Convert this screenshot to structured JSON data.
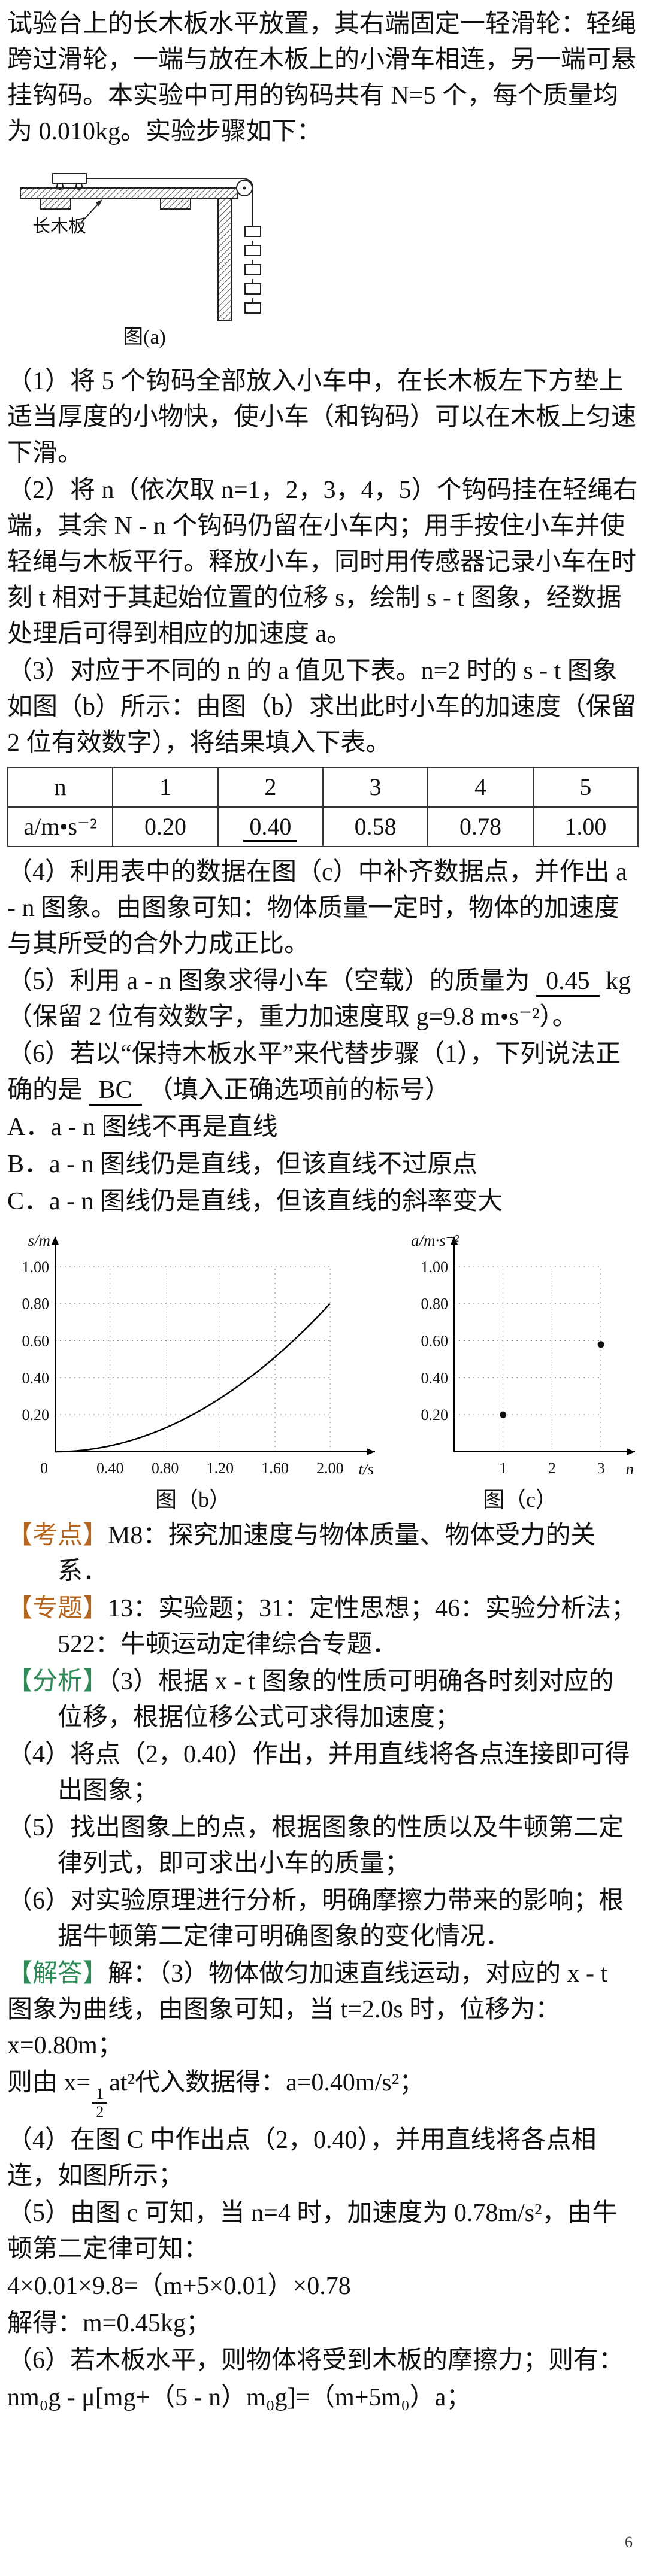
{
  "page_number": "6",
  "intro": "试验台上的长木板水平放置，其右端固定一轻滑轮：轻绳跨过滑轮，一端与放在木板上的小滑车相连，另一端可悬挂钩码。本实验中可用的钩码共有 N=5 个，每个质量均为 0.010kg。实验步骤如下：",
  "figure_a": {
    "board_label": "长木板",
    "caption": "图(a)"
  },
  "steps": [
    "（1）将 5 个钩码全部放入小车中，在长木板左下方垫上适当厚度的小物快，使小车（和钩码）可以在木板上匀速下滑。",
    "（2）将 n（依次取 n=1，2，3，4，5）个钩码挂在轻绳右端，其余 N - n 个钩码仍留在小车内；用手按住小车并使轻绳与木板平行。释放小车，同时用传感器记录小车在时刻 t 相对于其起始位置的位移 s，绘制 s - t 图象，经数据处理后可得到相应的加速度 a。",
    "（3）对应于不同的 n 的 a 值见下表。n=2 时的 s - t 图象如图（b）所示：由图（b）求出此时小车的加速度（保留 2 位有效数字），将结果填入下表。",
    "（4）利用表中的数据在图（c）中补齐数据点，并作出 a - n 图象。由图象可知：物体质量一定时，物体的加速度与其所受的合外力成正比。"
  ],
  "step5": {
    "pre": "（5）利用 a - n 图象求得小车（空载）的质量为",
    "answer": "0.45",
    "post": "kg（保留 2 位有效数字，重力加速度取 g=9.8 m•s⁻²）。"
  },
  "step6": {
    "pre": "（6）若以“保持木板水平”来代替步骤（1），下列说法正确的是",
    "answer": "BC",
    "post": "（填入正确选项前的标号）"
  },
  "options": [
    "A．a - n 图线不再是直线",
    "B．a - n 图线仍是直线，但该直线不过原点",
    "C．a - n 图线仍是直线，但该直线的斜率变大"
  ],
  "table": {
    "row1": [
      "n",
      "1",
      "2",
      "3",
      "4",
      "5"
    ],
    "row2_label": "a/m•s⁻²",
    "row2": [
      "0.20",
      "0.40",
      "0.58",
      "0.78",
      "1.00"
    ],
    "filled_answer": "0.40"
  },
  "chart_data": [
    {
      "type": "line",
      "name": "figure_b",
      "title": "图（b）",
      "ylabel": "s/m",
      "xlabel": "t/s",
      "origin": "0",
      "x_ticks": [
        "0.40",
        "0.80",
        "1.20",
        "1.60",
        "2.00"
      ],
      "y_ticks": [
        "0.20",
        "0.40",
        "0.60",
        "0.80",
        "1.00"
      ],
      "xlim": [
        0,
        2.24
      ],
      "ylim": [
        0,
        1.1
      ],
      "grid": "dotted",
      "x": [
        0,
        0.2,
        0.4,
        0.6,
        0.8,
        1.0,
        1.2,
        1.4,
        1.6,
        1.8,
        2.0
      ],
      "y": [
        0,
        0.008,
        0.032,
        0.072,
        0.128,
        0.2,
        0.288,
        0.392,
        0.512,
        0.648,
        0.8
      ],
      "bezier": {
        "p0": [
          0,
          0
        ],
        "p1": [
          1,
          0
        ],
        "p2": [
          2,
          0.8
        ]
      }
    },
    {
      "type": "scatter",
      "name": "figure_c",
      "title": "图（c）",
      "ylabel": "a/m·s⁻²",
      "xlabel": "n",
      "x_ticks": [
        "1",
        "2",
        "3"
      ],
      "y_ticks": [
        "0.20",
        "0.40",
        "0.60",
        "0.80",
        "1.00"
      ],
      "xlim": [
        0,
        3.5
      ],
      "ylim": [
        0,
        1.1
      ],
      "grid": "dotted",
      "points": [
        [
          1,
          0.2
        ],
        [
          3,
          0.58
        ]
      ]
    }
  ],
  "sections": {
    "kaodian": {
      "label": "【考点】",
      "color": "#b5651d",
      "text": "M8：探究加速度与物体质量、物体受力的关系．"
    },
    "zhuanti": {
      "label": "【专题】",
      "color": "#b5651d",
      "text": "13：实验题；31：定性思想；46：实验分析法；522：牛顿运动定律综合专题．"
    },
    "fenxi": {
      "label": "【分析】",
      "color": "#2e8b57",
      "items": [
        "（3）根据 x - t 图象的性质可明确各时刻对应的位移，根据位移公式可求得加速度；",
        "（4）将点（2，0.40）作出，并用直线将各点连接即可得出图象；",
        "（5）找出图象上的点，根据图象的性质以及牛顿第二定律列式，即可求出小车的质量；",
        "（6）对实验原理进行分析，明确摩擦力带来的影响；根据牛顿第二定律可明确图象的变化情况．"
      ]
    },
    "jieda": {
      "label": "【解答】",
      "color": "#2e8b57",
      "p1": "解：（3）物体做匀加速直线运动，对应的 x - t 图象为曲线，由图象可知，当 t=2.0s 时，位移为：x=0.80m；",
      "frac": {
        "pre": "则由 x=",
        "num": "1",
        "den": "2",
        "post": "at²代入数据得：a=0.40m/s²；"
      },
      "p3": "（4）在图 C 中作出点（2，0.40），并用直线将各点相连，如图所示；",
      "p4": "（5）由图 c 可知，当 n=4 时，加速度为 0.78m/s²，由牛顿第二定律可知：",
      "eq1": "4×0.01×9.8=（m+5×0.01）×0.78",
      "p5": "解得：m=0.45kg；",
      "p6": "（6）若木板水平，则物体将受到木板的摩擦力；则有：",
      "eq2": "nm₀g - μ[mg+（5 - n）m₀g]=（m+5m₀）a；"
    }
  }
}
